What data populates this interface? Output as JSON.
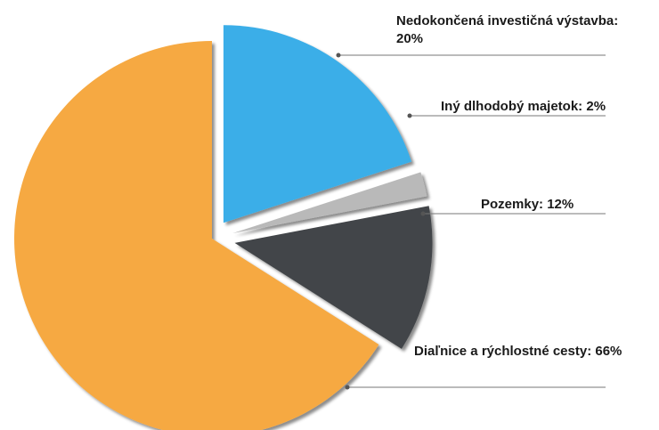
{
  "chart_data": {
    "type": "pie",
    "categories": [
      "Nedokončená investičná výstavba:",
      "Iný dlhodobý majetok:",
      "Pozemky:",
      "Diaľnice a rýchlostné cesty:"
    ],
    "values": [
      20,
      2,
      12,
      66
    ],
    "value_labels": [
      "20%",
      "2%",
      "12%",
      "66%"
    ],
    "colors": [
      "#3aaee8",
      "#b9b9b9",
      "#424548",
      "#f6a942"
    ]
  }
}
